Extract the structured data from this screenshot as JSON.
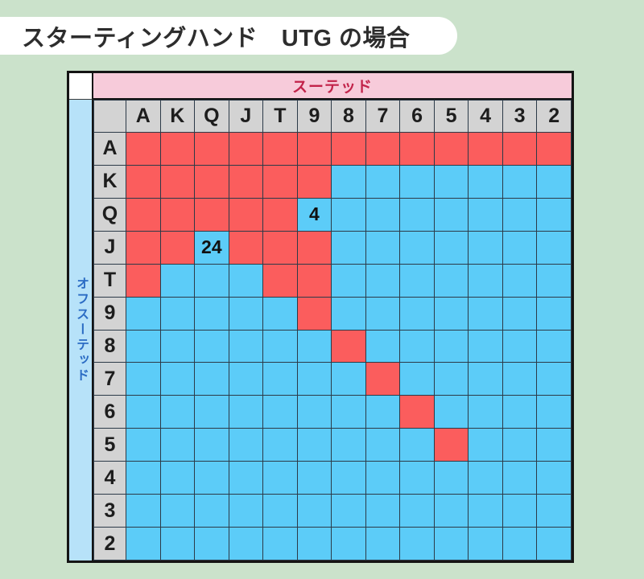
{
  "page": {
    "title": "スターティングハンド　UTG の場合",
    "background_color": "#cbe2cb"
  },
  "table": {
    "suited_label": "スーテッド",
    "offsuit_label": "オフスーテッド"
  },
  "chart_data": {
    "type": "heatmap",
    "title": "スターティングハンド　UTG の場合",
    "top_header": "スーテッド",
    "left_header": "オフスーテッド",
    "columns": [
      "A",
      "K",
      "Q",
      "J",
      "T",
      "9",
      "8",
      "7",
      "6",
      "5",
      "4",
      "3",
      "2"
    ],
    "rows": [
      "A",
      "K",
      "Q",
      "J",
      "T",
      "9",
      "8",
      "7",
      "6",
      "5",
      "4",
      "3",
      "2"
    ],
    "grid": [
      "RRRRRRRRRRRRR",
      "RRRRRRBBBBBBB",
      "RRRRRBBBBBBBB",
      "RRBRRRBBBBBBB",
      "RBBBRRBBBBBBB",
      "BBBBBRBBBBBBB",
      "BBBBBBRBBBBBB",
      "BBBBBBBRBBBBB",
      "BBBBBBBBRBBBB",
      "BBBBBBBBBRBBB",
      "BBBBBBBBBBBBB",
      "BBBBBBBBBBBBB",
      "BBBBBBBBBBBBB"
    ],
    "cell_labels": [
      {
        "row_index": 2,
        "col_index": 5,
        "row": "Q",
        "col": "9",
        "text": "4"
      },
      {
        "row_index": 3,
        "col_index": 2,
        "row": "J",
        "col": "Q",
        "text": "24"
      }
    ],
    "cell_colors": {
      "R": "#fb5d5d",
      "B": "#5cccf8"
    },
    "legend_position": "none",
    "grid_lines": true
  }
}
